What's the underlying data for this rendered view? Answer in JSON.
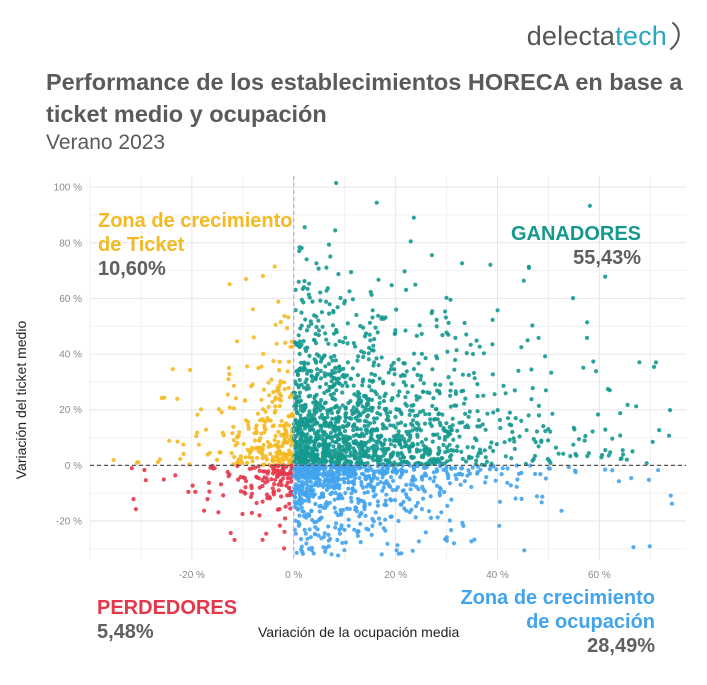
{
  "logo": {
    "part1": "delecta",
    "part2": "tech"
  },
  "title": "Performance de los establecimientos HORECA en base a ticket medio y ocupación",
  "subtitle": "Verano 2023",
  "zones": {
    "top_left": {
      "name_line1": "Zona de crecimiento",
      "name_line2": "de Ticket",
      "pct": "10,60%",
      "color": "#f5b921"
    },
    "top_right": {
      "name": "GANADORES",
      "pct": "55,43%",
      "color": "#15998f"
    },
    "bottom_left": {
      "name": "PERDEDORES",
      "pct": "5,48%",
      "color": "#e4374a"
    },
    "bottom_right": {
      "name_line1": "Zona de crecimiento",
      "name_line2": "de ocupación",
      "pct": "28,49%",
      "color": "#43a4ee"
    }
  },
  "chart_data": {
    "type": "scatter",
    "title": "Performance de los establecimientos HORECA en base a ticket medio y ocupación",
    "subtitle": "Verano 2023",
    "xlabel": "Variación de la ocupación media",
    "ylabel": "Variación del ticket medio",
    "xlim": [
      -40,
      77
    ],
    "ylim": [
      -34,
      104
    ],
    "x_ticks": [
      -20,
      0,
      20,
      40,
      60
    ],
    "x_tick_labels": [
      "-20 %",
      "0 %",
      "20 %",
      "40 %",
      "60 %"
    ],
    "y_ticks": [
      -20,
      0,
      20,
      40,
      60,
      80,
      100
    ],
    "y_tick_labels": [
      "-20 %",
      "0 %",
      "20 %",
      "40 %",
      "60 %",
      "80 %",
      "100 %"
    ],
    "grid": true,
    "reference_lines": {
      "x": 0,
      "y": 0
    },
    "quadrant_shares": {
      "top_left": 10.6,
      "top_right": 55.43,
      "bottom_left": 5.48,
      "bottom_right": 28.49
    },
    "series": [
      {
        "name": "Zona de crecimiento de Ticket",
        "quadrant": "top_left",
        "color": "#f5b921",
        "approx_points": 275,
        "x_range": [
          -38,
          0
        ],
        "y_range": [
          0,
          72
        ]
      },
      {
        "name": "GANADORES",
        "quadrant": "top_right",
        "color": "#15998f",
        "approx_points": 1440,
        "x_range": [
          0,
          76
        ],
        "y_range": [
          0,
          104
        ]
      },
      {
        "name": "PERDEDORES",
        "quadrant": "bottom_left",
        "color": "#e4374a",
        "approx_points": 142,
        "x_range": [
          -35,
          0
        ],
        "y_range": [
          -30,
          0
        ]
      },
      {
        "name": "Zona de crecimiento de ocupación",
        "quadrant": "bottom_right",
        "color": "#43a4ee",
        "approx_points": 740,
        "x_range": [
          0,
          76
        ],
        "y_range": [
          -33,
          0
        ]
      }
    ]
  }
}
